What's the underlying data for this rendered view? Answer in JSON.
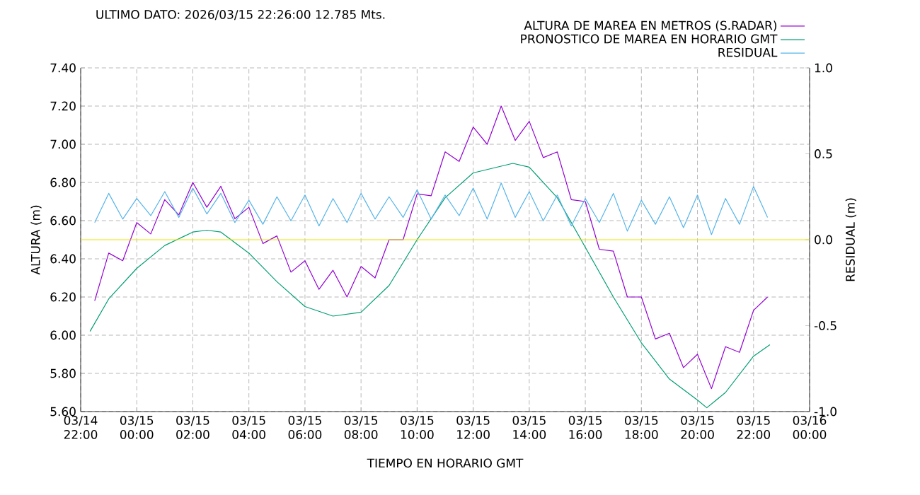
{
  "chart_data": {
    "type": "line",
    "title": "ULTIMO DATO: 2026/03/15  22:26:00 12.785 Mts.",
    "xlabel": "TIEMPO EN HORARIO GMT",
    "ylabel": "ALTURA (m)",
    "y2label": "RESIDUAL (m)",
    "xlim": [
      "2026-03-14T22:00",
      "2026-03-16T00:00"
    ],
    "xticks": [
      {
        "value": "2026-03-14T22:00",
        "label": "03/14 22:00"
      },
      {
        "value": "2026-03-15T00:00",
        "label": "03/15 00:00"
      },
      {
        "value": "2026-03-15T02:00",
        "label": "03/15 02:00"
      },
      {
        "value": "2026-03-15T04:00",
        "label": "03/15 04:00"
      },
      {
        "value": "2026-03-15T06:00",
        "label": "03/15 06:00"
      },
      {
        "value": "2026-03-15T08:00",
        "label": "03/15 08:00"
      },
      {
        "value": "2026-03-15T10:00",
        "label": "03/15 10:00"
      },
      {
        "value": "2026-03-15T12:00",
        "label": "03/15 12:00"
      },
      {
        "value": "2026-03-15T14:00",
        "label": "03/15 14:00"
      },
      {
        "value": "2026-03-15T16:00",
        "label": "03/15 16:00"
      },
      {
        "value": "2026-03-15T18:00",
        "label": "03/15 18:00"
      },
      {
        "value": "2026-03-15T20:00",
        "label": "03/15 20:00"
      },
      {
        "value": "2026-03-15T22:00",
        "label": "03/15 22:00"
      },
      {
        "value": "2026-03-16T00:00",
        "label": "03/16 00:00"
      }
    ],
    "ylim": [
      5.6,
      7.4
    ],
    "yticks": [
      {
        "value": 5.6,
        "label": "5.60"
      },
      {
        "value": 5.8,
        "label": "5.80"
      },
      {
        "value": 6.0,
        "label": "6.00"
      },
      {
        "value": 6.2,
        "label": "6.20"
      },
      {
        "value": 6.4,
        "label": "6.40"
      },
      {
        "value": 6.6,
        "label": "6.60"
      },
      {
        "value": 6.8,
        "label": "6.80"
      },
      {
        "value": 7.0,
        "label": "7.00"
      },
      {
        "value": 7.2,
        "label": "7.20"
      },
      {
        "value": 7.4,
        "label": "7.40"
      }
    ],
    "y2lim": [
      -1.0,
      1.0
    ],
    "y2ticks": [
      {
        "value": -1.0,
        "label": "-1.0"
      },
      {
        "value": -0.5,
        "label": "-0.5"
      },
      {
        "value": 0.0,
        "label": "0.0"
      },
      {
        "value": 0.5,
        "label": "0.5"
      },
      {
        "value": 1.0,
        "label": "1.0"
      }
    ],
    "grid": true,
    "legend": "top right",
    "ref_lines": [
      {
        "axis": "y2",
        "value": 0.0,
        "color": "#e8e800"
      }
    ],
    "series": [
      {
        "name": "ALTURA DE MAREA EN METROS (S.RADAR)",
        "color": "#9400d3",
        "x": [
          "2026-03-14T22:30",
          "2026-03-14T23:00",
          "2026-03-14T23:30",
          "2026-03-15T00:00",
          "2026-03-15T00:30",
          "2026-03-15T01:00",
          "2026-03-15T01:30",
          "2026-03-15T02:00",
          "2026-03-15T02:30",
          "2026-03-15T03:00",
          "2026-03-15T03:30",
          "2026-03-15T04:00",
          "2026-03-15T04:30",
          "2026-03-15T05:00",
          "2026-03-15T05:30",
          "2026-03-15T06:00",
          "2026-03-15T06:30",
          "2026-03-15T07:00",
          "2026-03-15T07:30",
          "2026-03-15T08:00",
          "2026-03-15T08:30",
          "2026-03-15T09:00",
          "2026-03-15T09:30",
          "2026-03-15T10:00",
          "2026-03-15T10:30",
          "2026-03-15T11:00",
          "2026-03-15T11:30",
          "2026-03-15T12:00",
          "2026-03-15T12:30",
          "2026-03-15T13:00",
          "2026-03-15T13:30",
          "2026-03-15T14:00",
          "2026-03-15T14:30",
          "2026-03-15T15:00",
          "2026-03-15T15:30",
          "2026-03-15T16:00",
          "2026-03-15T16:30",
          "2026-03-15T17:00",
          "2026-03-15T17:30",
          "2026-03-15T18:00",
          "2026-03-15T18:30",
          "2026-03-15T19:00",
          "2026-03-15T19:30",
          "2026-03-15T20:00",
          "2026-03-15T20:30",
          "2026-03-15T21:00",
          "2026-03-15T21:30",
          "2026-03-15T22:00",
          "2026-03-15T22:30"
        ],
        "values": [
          6.18,
          6.43,
          6.39,
          6.59,
          6.53,
          6.71,
          6.63,
          6.8,
          6.67,
          6.78,
          6.61,
          6.67,
          6.48,
          6.52,
          6.33,
          6.39,
          6.24,
          6.34,
          6.2,
          6.36,
          6.3,
          6.5,
          6.5,
          6.74,
          6.73,
          6.96,
          6.91,
          7.09,
          7.0,
          7.2,
          7.02,
          7.12,
          6.93,
          6.96,
          6.71,
          6.7,
          6.45,
          6.44,
          6.2,
          6.2,
          5.98,
          6.01,
          5.83,
          5.9,
          5.72,
          5.94,
          5.91,
          6.13,
          6.2
        ]
      },
      {
        "name": "PRONOSTICO DE MAREA EN HORARIO GMT",
        "color": "#009e73",
        "x": [
          "2026-03-14T22:20",
          "2026-03-14T23:00",
          "2026-03-15T00:00",
          "2026-03-15T01:00",
          "2026-03-15T02:00",
          "2026-03-15T02:30",
          "2026-03-15T03:00",
          "2026-03-15T04:00",
          "2026-03-15T05:00",
          "2026-03-15T06:00",
          "2026-03-15T07:00",
          "2026-03-15T08:00",
          "2026-03-15T09:00",
          "2026-03-15T10:00",
          "2026-03-15T11:00",
          "2026-03-15T12:00",
          "2026-03-15T13:25",
          "2026-03-15T14:00",
          "2026-03-15T15:00",
          "2026-03-15T16:00",
          "2026-03-15T17:00",
          "2026-03-15T18:00",
          "2026-03-15T19:00",
          "2026-03-15T20:00",
          "2026-03-15T20:20",
          "2026-03-15T21:00",
          "2026-03-15T22:00",
          "2026-03-15T22:35"
        ],
        "values": [
          6.02,
          6.19,
          6.35,
          6.47,
          6.54,
          6.55,
          6.54,
          6.43,
          6.28,
          6.15,
          6.1,
          6.12,
          6.26,
          6.5,
          6.72,
          6.85,
          6.9,
          6.88,
          6.72,
          6.46,
          6.2,
          5.96,
          5.77,
          5.66,
          5.62,
          5.7,
          5.89,
          5.95
        ]
      },
      {
        "name": "RESIDUAL",
        "color": "#56b4e9",
        "axis": "y2",
        "x": [
          "2026-03-14T22:30",
          "2026-03-14T23:00",
          "2026-03-14T23:30",
          "2026-03-15T00:00",
          "2026-03-15T00:30",
          "2026-03-15T01:00",
          "2026-03-15T01:30",
          "2026-03-15T02:00",
          "2026-03-15T02:30",
          "2026-03-15T03:00",
          "2026-03-15T03:30",
          "2026-03-15T04:00",
          "2026-03-15T04:30",
          "2026-03-15T05:00",
          "2026-03-15T05:30",
          "2026-03-15T06:00",
          "2026-03-15T06:30",
          "2026-03-15T07:00",
          "2026-03-15T07:30",
          "2026-03-15T08:00",
          "2026-03-15T08:30",
          "2026-03-15T09:00",
          "2026-03-15T09:30",
          "2026-03-15T10:00",
          "2026-03-15T10:30",
          "2026-03-15T11:00",
          "2026-03-15T11:30",
          "2026-03-15T12:00",
          "2026-03-15T12:30",
          "2026-03-15T13:00",
          "2026-03-15T13:30",
          "2026-03-15T14:00",
          "2026-03-15T14:30",
          "2026-03-15T15:00",
          "2026-03-15T15:30",
          "2026-03-15T16:00",
          "2026-03-15T16:30",
          "2026-03-15T17:00",
          "2026-03-15T17:30",
          "2026-03-15T18:00",
          "2026-03-15T18:30",
          "2026-03-15T19:00",
          "2026-03-15T19:30",
          "2026-03-15T20:00",
          "2026-03-15T20:30",
          "2026-03-15T21:00",
          "2026-03-15T21:30",
          "2026-03-15T22:00",
          "2026-03-15T22:30"
        ],
        "values": [
          0.1,
          0.27,
          0.12,
          0.24,
          0.14,
          0.28,
          0.13,
          0.3,
          0.15,
          0.27,
          0.1,
          0.23,
          0.09,
          0.25,
          0.11,
          0.26,
          0.08,
          0.24,
          0.1,
          0.27,
          0.12,
          0.25,
          0.13,
          0.29,
          0.12,
          0.26,
          0.14,
          0.3,
          0.12,
          0.33,
          0.13,
          0.28,
          0.11,
          0.26,
          0.08,
          0.24,
          0.1,
          0.27,
          0.05,
          0.23,
          0.09,
          0.25,
          0.07,
          0.26,
          0.03,
          0.24,
          0.09,
          0.31,
          0.13
        ]
      }
    ]
  }
}
